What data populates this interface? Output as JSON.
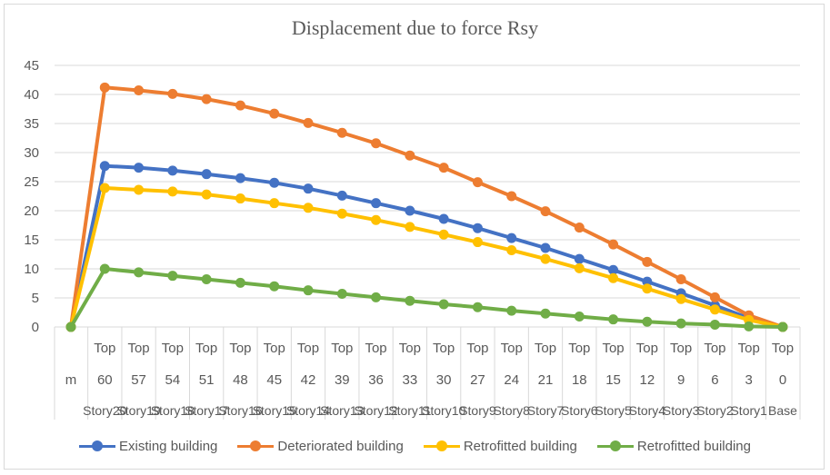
{
  "chart_data": {
    "type": "line",
    "title": "Displacement due to force Rsy",
    "xlabel": "",
    "ylabel": "",
    "ylim": [
      0,
      45
    ],
    "yticks": [
      0,
      5,
      10,
      15,
      20,
      25,
      30,
      35,
      40,
      45
    ],
    "grid": true,
    "legend_position": "bottom",
    "category_levels": {
      "top": [
        "",
        "Top",
        "Top",
        "Top",
        "Top",
        "Top",
        "Top",
        "Top",
        "Top",
        "Top",
        "Top",
        "Top",
        "Top",
        "Top",
        "Top",
        "Top",
        "Top",
        "Top",
        "Top",
        "Top",
        "Top",
        "Top"
      ],
      "middle": [
        "m",
        "60",
        "57",
        "54",
        "51",
        "48",
        "45",
        "42",
        "39",
        "36",
        "33",
        "30",
        "27",
        "24",
        "21",
        "18",
        "15",
        "12",
        "9",
        "6",
        "3",
        "0"
      ],
      "bottom": [
        "",
        "Story20",
        "Story19",
        "Story18",
        "Story17",
        "Story16",
        "Story15",
        "Story14",
        "Story13",
        "Story12",
        "Story11",
        "Story10",
        "Story9",
        "Story8",
        "Story7",
        "Story6",
        "Story5",
        "Story4",
        "Story3",
        "Story2",
        "Story1",
        "Base"
      ]
    },
    "series": [
      {
        "name": "Existing building",
        "color": "#4472C4",
        "values": [
          0,
          27.7,
          27.4,
          26.9,
          26.3,
          25.6,
          24.8,
          23.8,
          22.6,
          21.3,
          20.0,
          18.6,
          17.0,
          15.3,
          13.6,
          11.7,
          9.8,
          7.8,
          5.8,
          3.7,
          1.5,
          0
        ]
      },
      {
        "name": "Deteriorated building",
        "color": "#ED7D31",
        "values": [
          0,
          41.2,
          40.7,
          40.1,
          39.2,
          38.1,
          36.7,
          35.1,
          33.4,
          31.6,
          29.5,
          27.4,
          24.9,
          22.5,
          19.9,
          17.1,
          14.2,
          11.2,
          8.2,
          5.1,
          2.0,
          0
        ]
      },
      {
        "name": "Retrofitted building",
        "color": "#FFC000",
        "values": [
          0,
          23.9,
          23.6,
          23.3,
          22.8,
          22.1,
          21.3,
          20.5,
          19.5,
          18.4,
          17.2,
          15.9,
          14.6,
          13.2,
          11.7,
          10.1,
          8.4,
          6.6,
          4.8,
          3.0,
          1.2,
          0
        ]
      },
      {
        "name": "Retrofitted building",
        "color": "#70AD47",
        "values": [
          0,
          10.0,
          9.4,
          8.8,
          8.2,
          7.6,
          7.0,
          6.3,
          5.7,
          5.1,
          4.5,
          3.9,
          3.4,
          2.8,
          2.3,
          1.8,
          1.3,
          0.9,
          0.6,
          0.4,
          0.1,
          0
        ]
      }
    ]
  }
}
